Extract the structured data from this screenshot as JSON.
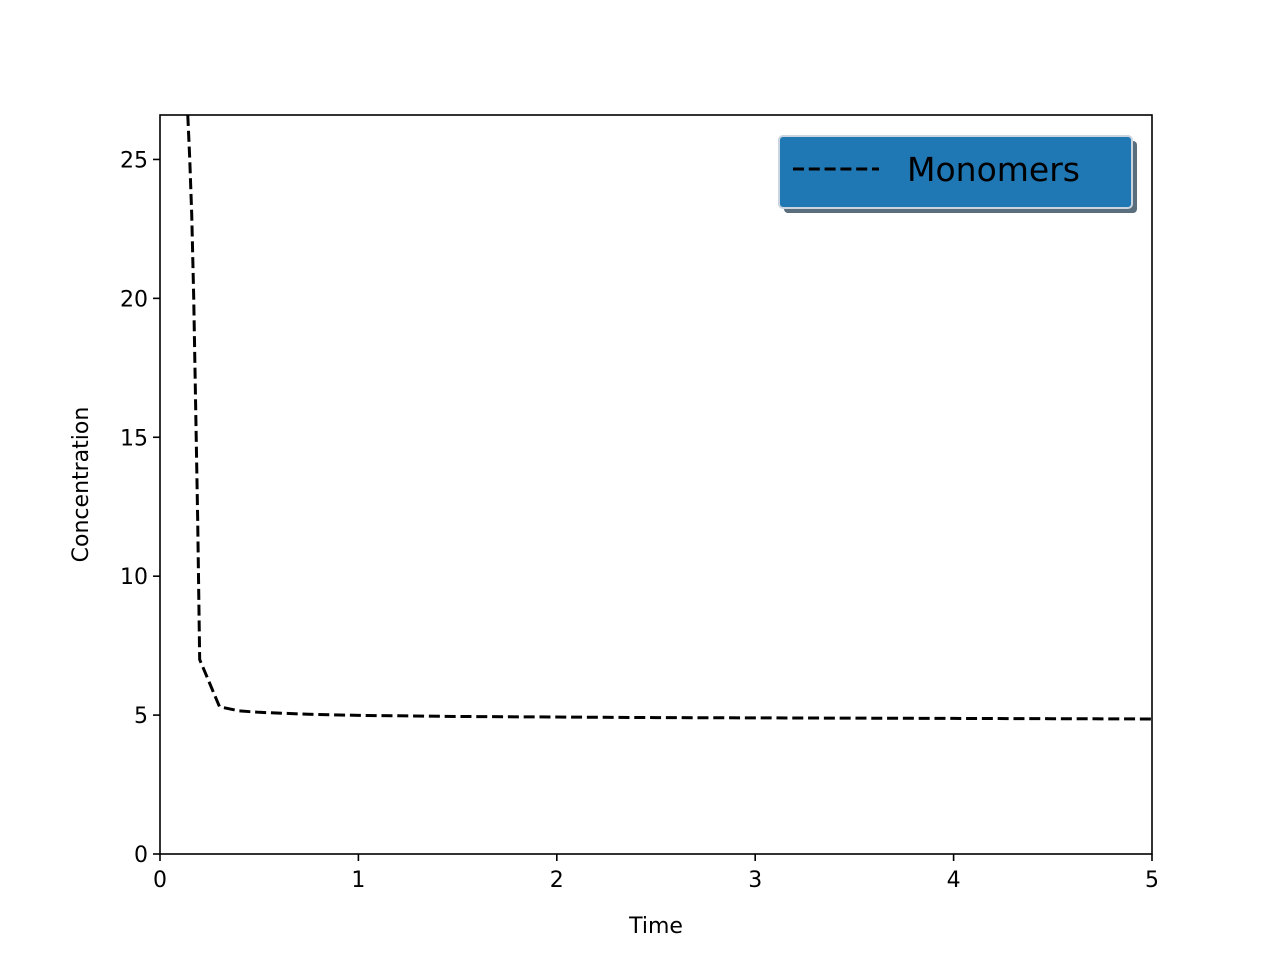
{
  "chart_data": {
    "type": "line",
    "title": "",
    "xlabel": "Time",
    "ylabel": "Concentration",
    "xlim": [
      0,
      5
    ],
    "ylim": [
      0,
      26.6
    ],
    "xticks": [
      0,
      1,
      2,
      3,
      4,
      5
    ],
    "yticks": [
      0,
      5,
      10,
      15,
      20,
      25
    ],
    "xtick_labels": [
      "0",
      "1",
      "2",
      "3",
      "4",
      "5"
    ],
    "ytick_labels": [
      "0",
      "5",
      "10",
      "15",
      "20",
      "25"
    ],
    "grid": false,
    "legend": {
      "position": "top-right",
      "background": "#1f77b4"
    },
    "series": [
      {
        "name": "Monomers",
        "color": "#000000",
        "style": "dashed",
        "x": [
          0.14,
          0.15,
          0.16,
          0.17,
          0.18,
          0.19,
          0.2,
          0.3,
          0.4,
          0.5,
          0.75,
          1.0,
          1.5,
          2.0,
          2.5,
          3.0,
          3.5,
          4.0,
          4.5,
          5.0
        ],
        "y": [
          26.6,
          25.0,
          23.0,
          20.0,
          16.0,
          12.0,
          7.0,
          5.3,
          5.15,
          5.1,
          5.03,
          4.99,
          4.95,
          4.93,
          4.91,
          4.9,
          4.89,
          4.88,
          4.87,
          4.86
        ]
      }
    ]
  }
}
